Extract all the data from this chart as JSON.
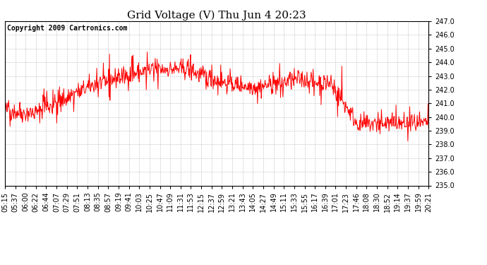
{
  "title": "Grid Voltage (V) Thu Jun 4 20:23",
  "copyright": "Copyright 2009 Cartronics.com",
  "line_color": "#ff0000",
  "bg_color": "#ffffff",
  "plot_bg_color": "#ffffff",
  "grid_color": "#aaaaaa",
  "ylim": [
    235.0,
    247.0
  ],
  "yticks": [
    235.0,
    236.0,
    237.0,
    238.0,
    239.0,
    240.0,
    241.0,
    242.0,
    243.0,
    244.0,
    245.0,
    246.0,
    247.0
  ],
  "xtick_labels": [
    "05:15",
    "05:37",
    "06:00",
    "06:22",
    "06:44",
    "07:07",
    "07:29",
    "07:51",
    "08:13",
    "08:35",
    "08:57",
    "09:19",
    "09:41",
    "10:03",
    "10:25",
    "10:47",
    "11:09",
    "11:31",
    "11:53",
    "12:15",
    "12:37",
    "12:59",
    "13:21",
    "13:43",
    "14:05",
    "14:27",
    "14:49",
    "15:11",
    "15:33",
    "15:55",
    "16:17",
    "16:39",
    "17:01",
    "17:23",
    "17:46",
    "18:08",
    "18:30",
    "18:52",
    "19:14",
    "19:37",
    "19:59",
    "20:21"
  ],
  "title_fontsize": 11,
  "tick_fontsize": 7,
  "copyright_fontsize": 7,
  "line_width": 0.7
}
